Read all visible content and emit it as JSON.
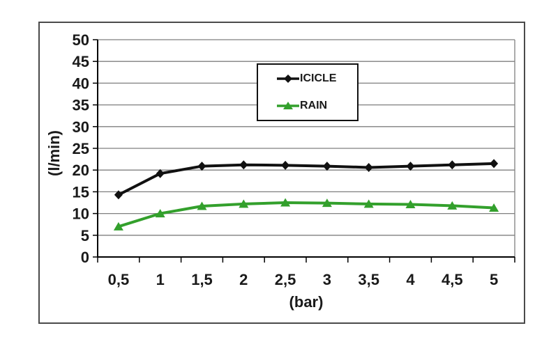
{
  "frame": {
    "border_color": "#4a4a4a",
    "background": "#ffffff"
  },
  "chart_data": {
    "type": "line",
    "title": "",
    "categories": [
      "0,5",
      "1",
      "1,5",
      "2",
      "2,5",
      "3",
      "3,5",
      "4",
      "4,5",
      "5"
    ],
    "series": [
      {
        "name": "ICICLE",
        "color": "#111111",
        "marker": "diamond",
        "line_width": 4,
        "values": [
          14.3,
          19.2,
          20.9,
          21.2,
          21.1,
          20.9,
          20.6,
          20.9,
          21.2,
          21.5
        ]
      },
      {
        "name": "RAIN",
        "color": "#33a02c",
        "marker": "triangle",
        "line_width": 4,
        "values": [
          7.0,
          10.0,
          11.7,
          12.2,
          12.5,
          12.4,
          12.2,
          12.1,
          11.8,
          11.3
        ]
      }
    ],
    "xlabel": "(bar)",
    "ylabel": "(l/min)",
    "ylim": [
      0,
      50
    ],
    "yticks": [
      0,
      5,
      10,
      15,
      20,
      25,
      30,
      35,
      40,
      45,
      50
    ],
    "grid": "horizontal",
    "gridline_color": "#7f7f7f",
    "axis_color": "#000000",
    "tick_label_color": "#1a1a1a",
    "legend": {
      "position": "top-center-inside",
      "border_color": "#111111",
      "background": "#ffffff",
      "entries": [
        "ICICLE",
        "RAIN"
      ]
    }
  }
}
